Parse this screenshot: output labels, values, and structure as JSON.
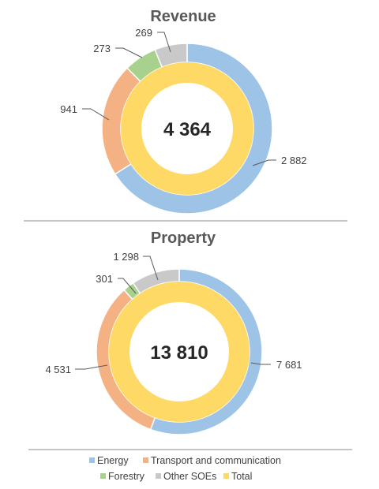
{
  "chart_data": [
    {
      "type": "donut",
      "title": "Revenue",
      "total_label": "4 364",
      "total": 4364,
      "series": [
        {
          "name": "Energy",
          "value": 2882,
          "label": "2 882"
        },
        {
          "name": "Transport and communication",
          "value": 941,
          "label": "941"
        },
        {
          "name": "Forestry",
          "value": 273,
          "label": "273"
        },
        {
          "name": "Other SOEs",
          "value": 269,
          "label": "269"
        }
      ]
    },
    {
      "type": "donut",
      "title": "Property",
      "total_label": "13 810",
      "total": 13810,
      "series": [
        {
          "name": "Energy",
          "value": 7681,
          "label": "7 681"
        },
        {
          "name": "Transport and communication",
          "value": 4531,
          "label": "4 531"
        },
        {
          "name": "Forestry",
          "value": 301,
          "label": "301"
        },
        {
          "name": "Other SOEs",
          "value": 1298,
          "label": "1 298"
        }
      ]
    }
  ],
  "legend": [
    {
      "name": "Energy",
      "color": "#9dc3e6"
    },
    {
      "name": "Transport and communication",
      "color": "#f4b183"
    },
    {
      "name": "Forestry",
      "color": "#a9d18e"
    },
    {
      "name": "Other SOEs",
      "color": "#c9c9c9"
    },
    {
      "name": "Total",
      "color": "#ffd966"
    }
  ],
  "colors": {
    "Energy": "#9dc3e6",
    "Transport and communication": "#f4b183",
    "Forestry": "#a9d18e",
    "Other SOEs": "#c9c9c9",
    "Total": "#ffd966"
  }
}
